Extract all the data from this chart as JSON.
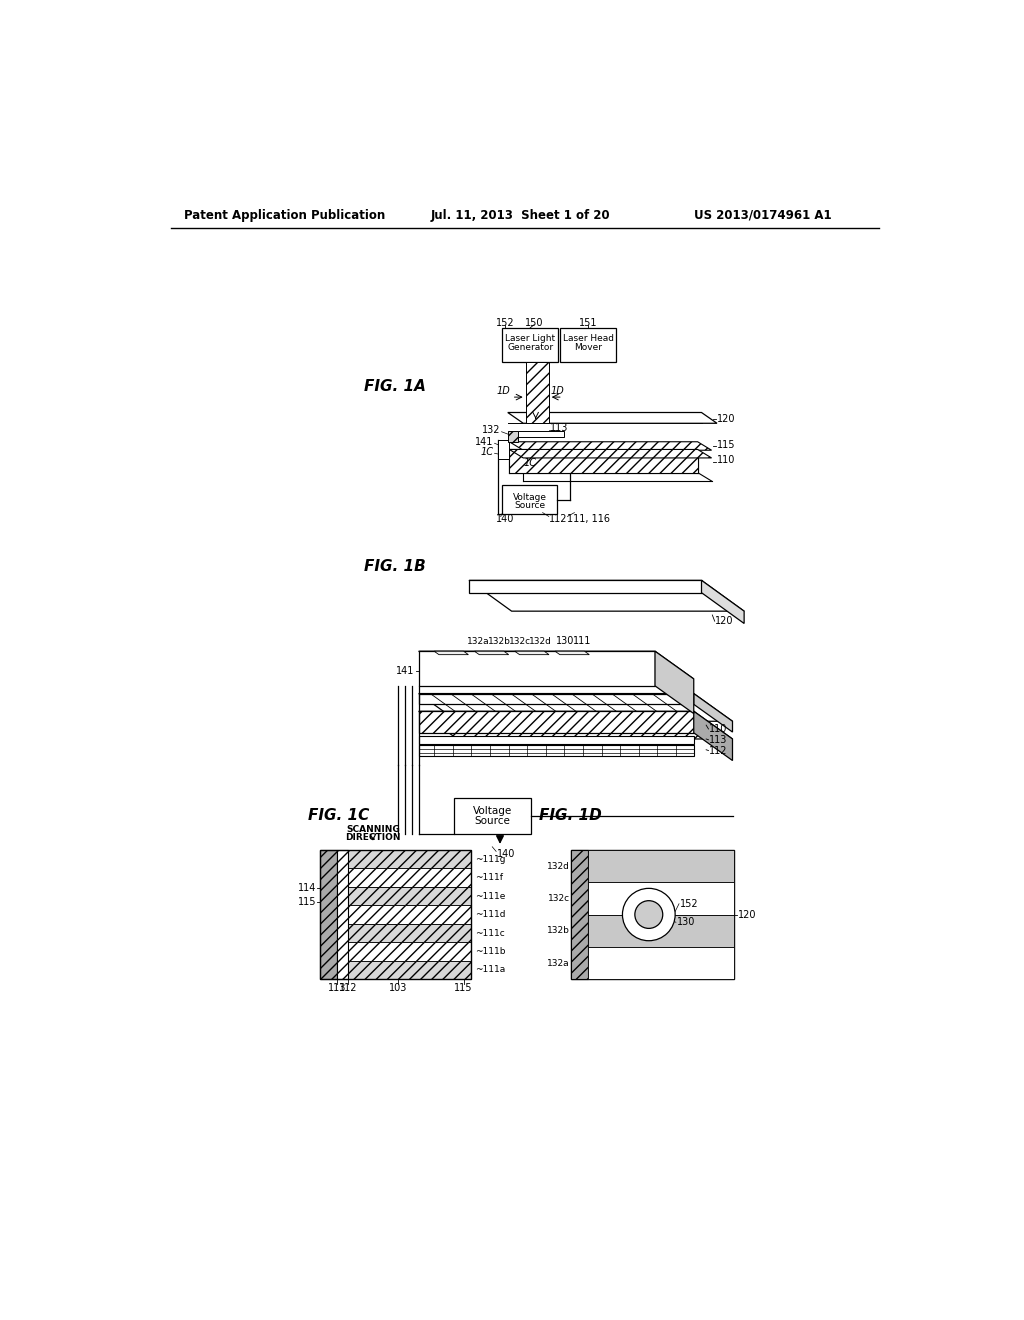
{
  "bg_color": "#ffffff",
  "header_left": "Patent Application Publication",
  "header_mid": "Jul. 11, 2013  Sheet 1 of 20",
  "header_right": "US 2013/0174961 A1",
  "fig1a_label": "FIG. 1A",
  "fig1b_label": "FIG. 1B",
  "fig1c_label": "FIG. 1C",
  "fig1d_label": "FIG. 1D"
}
